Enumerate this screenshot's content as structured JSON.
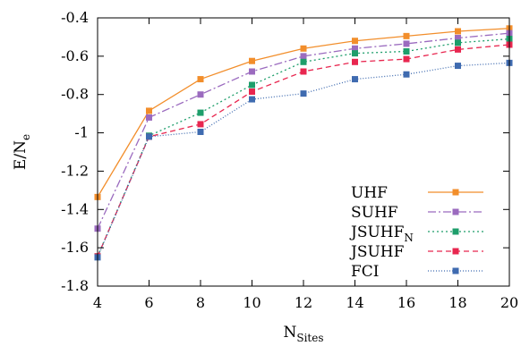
{
  "chart_data": {
    "type": "line",
    "xlabel": "N",
    "xlabel_sub": "Sites",
    "ylabel": "E/N",
    "ylabel_sub": "e",
    "xlim": [
      4,
      20
    ],
    "ylim": [
      -1.8,
      -0.4
    ],
    "x_ticks": [
      4,
      6,
      8,
      10,
      12,
      14,
      16,
      18,
      20
    ],
    "x_tick_labels": [
      "4",
      "6",
      "8",
      "10",
      "12",
      "14",
      "16",
      "18",
      "20"
    ],
    "y_ticks": [
      -1.8,
      -1.6,
      -1.4,
      -1.2,
      -1.0,
      -0.8,
      -0.6,
      -0.4
    ],
    "y_tick_labels": [
      "-1.8",
      "-1.6",
      "-1.4",
      "-1.2",
      "-1",
      "-0.8",
      "-0.6",
      "-0.4"
    ],
    "grid": false,
    "legend_position": "bottom-right",
    "x": [
      4,
      6,
      8,
      10,
      12,
      14,
      16,
      18,
      20
    ],
    "series": [
      {
        "name": "UHF",
        "name_sub": "",
        "color": "#f28e2b",
        "dash": "solid",
        "values": [
          -1.335,
          -0.885,
          -0.72,
          -0.625,
          -0.56,
          -0.52,
          -0.495,
          -0.47,
          -0.455
        ]
      },
      {
        "name": "SUHF",
        "name_sub": "",
        "color": "#9b6bbf",
        "dash": "dashdot",
        "values": [
          -1.5,
          -0.92,
          -0.8,
          -0.68,
          -0.6,
          -0.56,
          -0.535,
          -0.505,
          -0.48
        ]
      },
      {
        "name": "JSUHF",
        "name_sub": "N",
        "color": "#1e9e6b",
        "dash": "dotted",
        "values": [
          -1.645,
          -1.015,
          -0.895,
          -0.75,
          -0.63,
          -0.585,
          -0.575,
          -0.53,
          -0.51
        ]
      },
      {
        "name": "JSUHF",
        "name_sub": "",
        "color": "#e8264f",
        "dash": "dashed",
        "values": [
          -1.645,
          -1.02,
          -0.955,
          -0.785,
          -0.68,
          -0.63,
          -0.615,
          -0.565,
          -0.54
        ]
      },
      {
        "name": "FCI",
        "name_sub": "",
        "color": "#3f6bb0",
        "dash": "fine-dotted",
        "values": [
          -1.65,
          -1.02,
          -0.995,
          -0.825,
          -0.795,
          -0.72,
          -0.695,
          -0.65,
          -0.635
        ]
      }
    ]
  }
}
